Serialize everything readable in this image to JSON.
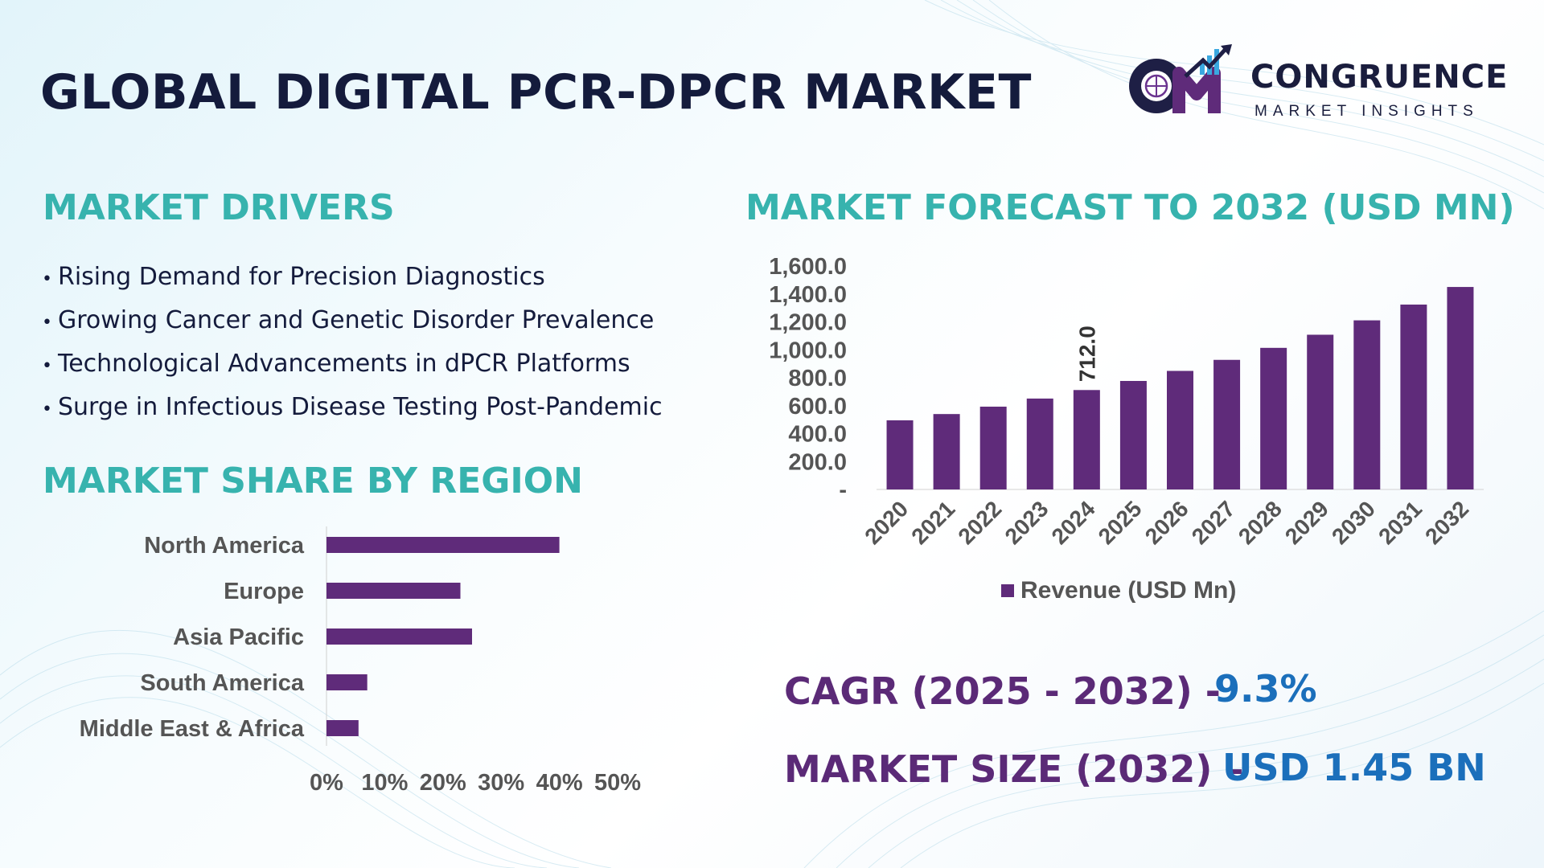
{
  "title": "GLOBAL DIGITAL PCR-DPCR MARKET",
  "logo": {
    "initials": "CM",
    "name": "CONGRUENCE",
    "tagline": "MARKET INSIGHTS"
  },
  "drivers": {
    "heading": "MARKET DRIVERS",
    "items": [
      "Rising Demand for Precision Diagnostics",
      "Growing Cancer and Genetic Disorder Prevalence",
      "Technological Advancements in dPCR Platforms",
      "Surge in Infectious Disease Testing Post-Pandemic"
    ]
  },
  "region": {
    "heading": "MARKET SHARE BY REGION"
  },
  "forecast": {
    "heading": "MARKET FORECAST TO 2032 (USD MN)"
  },
  "stats": {
    "cagr_label": "CAGR (2025 - 2032) -",
    "cagr_value": "9.3%",
    "size_label": "MARKET SIZE (2032) –",
    "size_value": "USD 1.45 BN"
  },
  "colors": {
    "bar": "#5f2b7a",
    "heading": "#37b3ae",
    "stat_label": "#5b2a77",
    "stat_value": "#1b6fbb",
    "title": "#141b3c"
  },
  "chart_data": [
    {
      "type": "bar",
      "orientation": "horizontal",
      "categories": [
        "North America",
        "Europe",
        "Asia Pacific",
        "South America",
        "Middle East & Africa"
      ],
      "values": [
        40,
        23,
        25,
        7,
        5.5
      ],
      "xlim": [
        0,
        50
      ],
      "xticks": [
        "0%",
        "10%",
        "20%",
        "30%",
        "40%",
        "50%"
      ]
    },
    {
      "type": "bar",
      "categories": [
        "2020",
        "2021",
        "2022",
        "2023",
        "2024",
        "2025",
        "2026",
        "2027",
        "2028",
        "2029",
        "2030",
        "2031",
        "2032"
      ],
      "series": [
        {
          "name": "Revenue (USD Mn)",
          "values": [
            495,
            540,
            593,
            651,
            712,
            777,
            849,
            928,
            1014,
            1108,
            1211,
            1324,
            1450
          ]
        }
      ],
      "data_labels": [
        {
          "category": "2024",
          "text": "712.0"
        }
      ],
      "ylim": [
        0,
        1600
      ],
      "yticks": [
        "-",
        "200.0",
        "400.0",
        "600.0",
        "800.0",
        "1,000.0",
        "1,200.0",
        "1,400.0",
        "1,600.0"
      ],
      "legend": "bottom"
    }
  ]
}
